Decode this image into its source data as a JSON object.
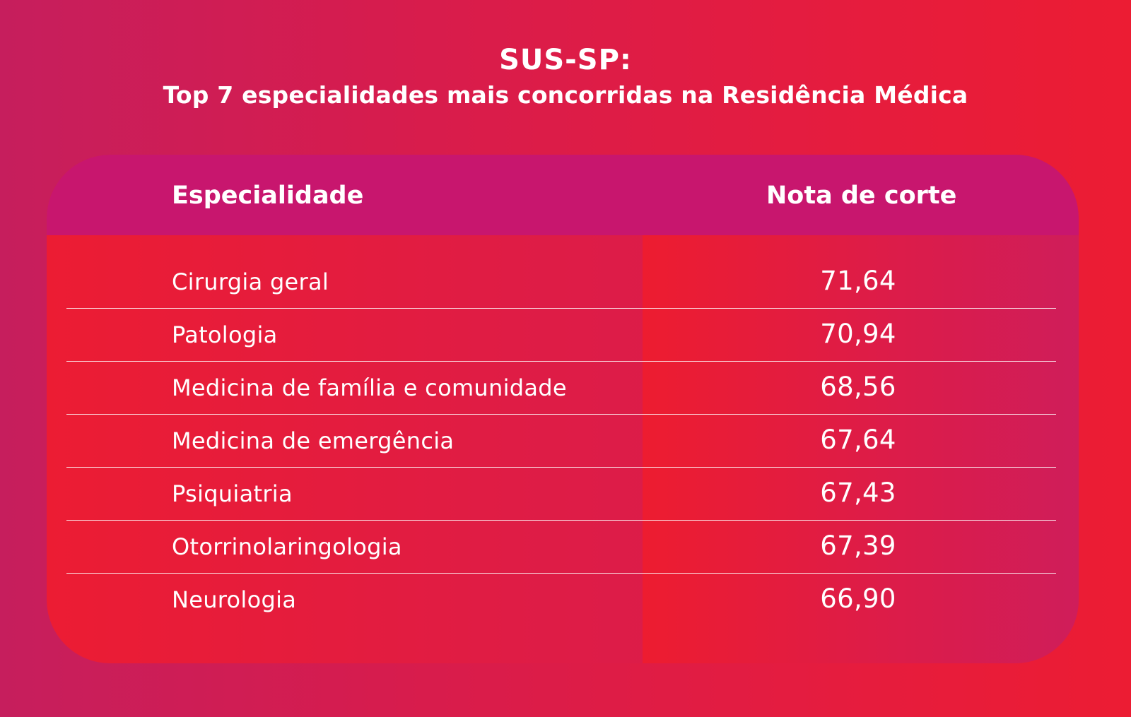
{
  "title": "SUS-SP:",
  "subtitle": "Top 7 especialidades mais concorridas na Residência Médica",
  "colors": {
    "background_left": "#c61e5d",
    "background_right": "#ec1c33",
    "header_bar": "#c8166e",
    "text": "#ffffff"
  },
  "table": {
    "headers": [
      "Especialidade",
      "Nota de corte"
    ],
    "rows": [
      {
        "especialidade": "Cirurgia geral",
        "nota": "71,64"
      },
      {
        "especialidade": "Patologia",
        "nota": "70,94"
      },
      {
        "especialidade": "Medicina de família e comunidade",
        "nota": "68,56"
      },
      {
        "especialidade": "Medicina de emergência",
        "nota": "67,64"
      },
      {
        "especialidade": "Psiquiatria",
        "nota": "67,43"
      },
      {
        "especialidade": "Otorrinolaringologia",
        "nota": "67,39"
      },
      {
        "especialidade": "Neurologia",
        "nota": "66,90"
      }
    ]
  },
  "chart_data": {
    "type": "table",
    "title": "SUS-SP:",
    "subtitle": "Top 7 especialidades mais concorridas na Residência Médica",
    "columns": [
      "Especialidade",
      "Nota de corte"
    ],
    "categories": [
      "Cirurgia geral",
      "Patologia",
      "Medicina de família e comunidade",
      "Medicina de emergência",
      "Psiquiatria",
      "Otorrinolaringologia",
      "Neurologia"
    ],
    "values": [
      71.64,
      70.94,
      68.56,
      67.64,
      67.43,
      67.39,
      66.9
    ]
  }
}
